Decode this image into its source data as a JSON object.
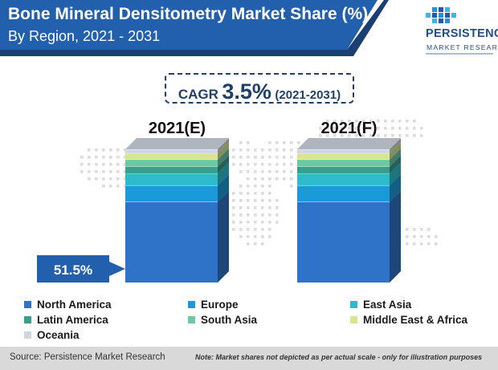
{
  "header": {
    "title": "Bone Mineral Densitometry Market Share (%)",
    "subtitle": "By Region, 2021 - 2031"
  },
  "logo": {
    "name": "PERSISTENCE",
    "tagline": "MARKET RESEARCH"
  },
  "cagr": {
    "label": "CAGR",
    "value": "3.5%",
    "period": "(2021-2031)"
  },
  "chart_data": {
    "type": "bar",
    "stacked": true,
    "categories": [
      "2021(E)",
      "2021(F)"
    ],
    "series": [
      {
        "name": "North America",
        "color": "#2e73c7",
        "values": [
          51.5,
          51.5
        ]
      },
      {
        "name": "Europe",
        "color": "#1a9ad9",
        "values": [
          10.5,
          10.5
        ]
      },
      {
        "name": "East Asia",
        "color": "#2bbcc9",
        "values": [
          7.5,
          7.5
        ]
      },
      {
        "name": "Latin America",
        "color": "#3a9e8e",
        "values": [
          4.5,
          4.5
        ]
      },
      {
        "name": "South Asia",
        "color": "#6cc9a4",
        "values": [
          4.5,
          4.5
        ]
      },
      {
        "name": "Middle East & Africa",
        "color": "#d6e590",
        "values": [
          4.0,
          4.0
        ]
      },
      {
        "name": "Oceania",
        "color": "#cfd6de",
        "values": [
          2.5,
          2.5
        ]
      }
    ],
    "annotations": [
      {
        "category": "2021(E)",
        "series": "North America",
        "text": "51.5%"
      }
    ],
    "note": "Market shares not depicted as per actual scale - only for illustration purposes",
    "legend_position": "bottom"
  },
  "legend": {
    "items": [
      {
        "label": "North America",
        "color": "#2e73c7"
      },
      {
        "label": "Europe",
        "color": "#1a9ad9"
      },
      {
        "label": "East Asia",
        "color": "#2bbcc9"
      },
      {
        "label": "Latin America",
        "color": "#3a9e8e"
      },
      {
        "label": "South Asia",
        "color": "#6cc9a4"
      },
      {
        "label": "Middle East & Africa",
        "color": "#d6e590"
      },
      {
        "label": "Oceania",
        "color": "#cfd6de"
      }
    ]
  },
  "footer": {
    "source": "Source: Persistence Market Research",
    "note": "Note: Market shares not depicted as per actual scale - only for illustration purposes"
  }
}
